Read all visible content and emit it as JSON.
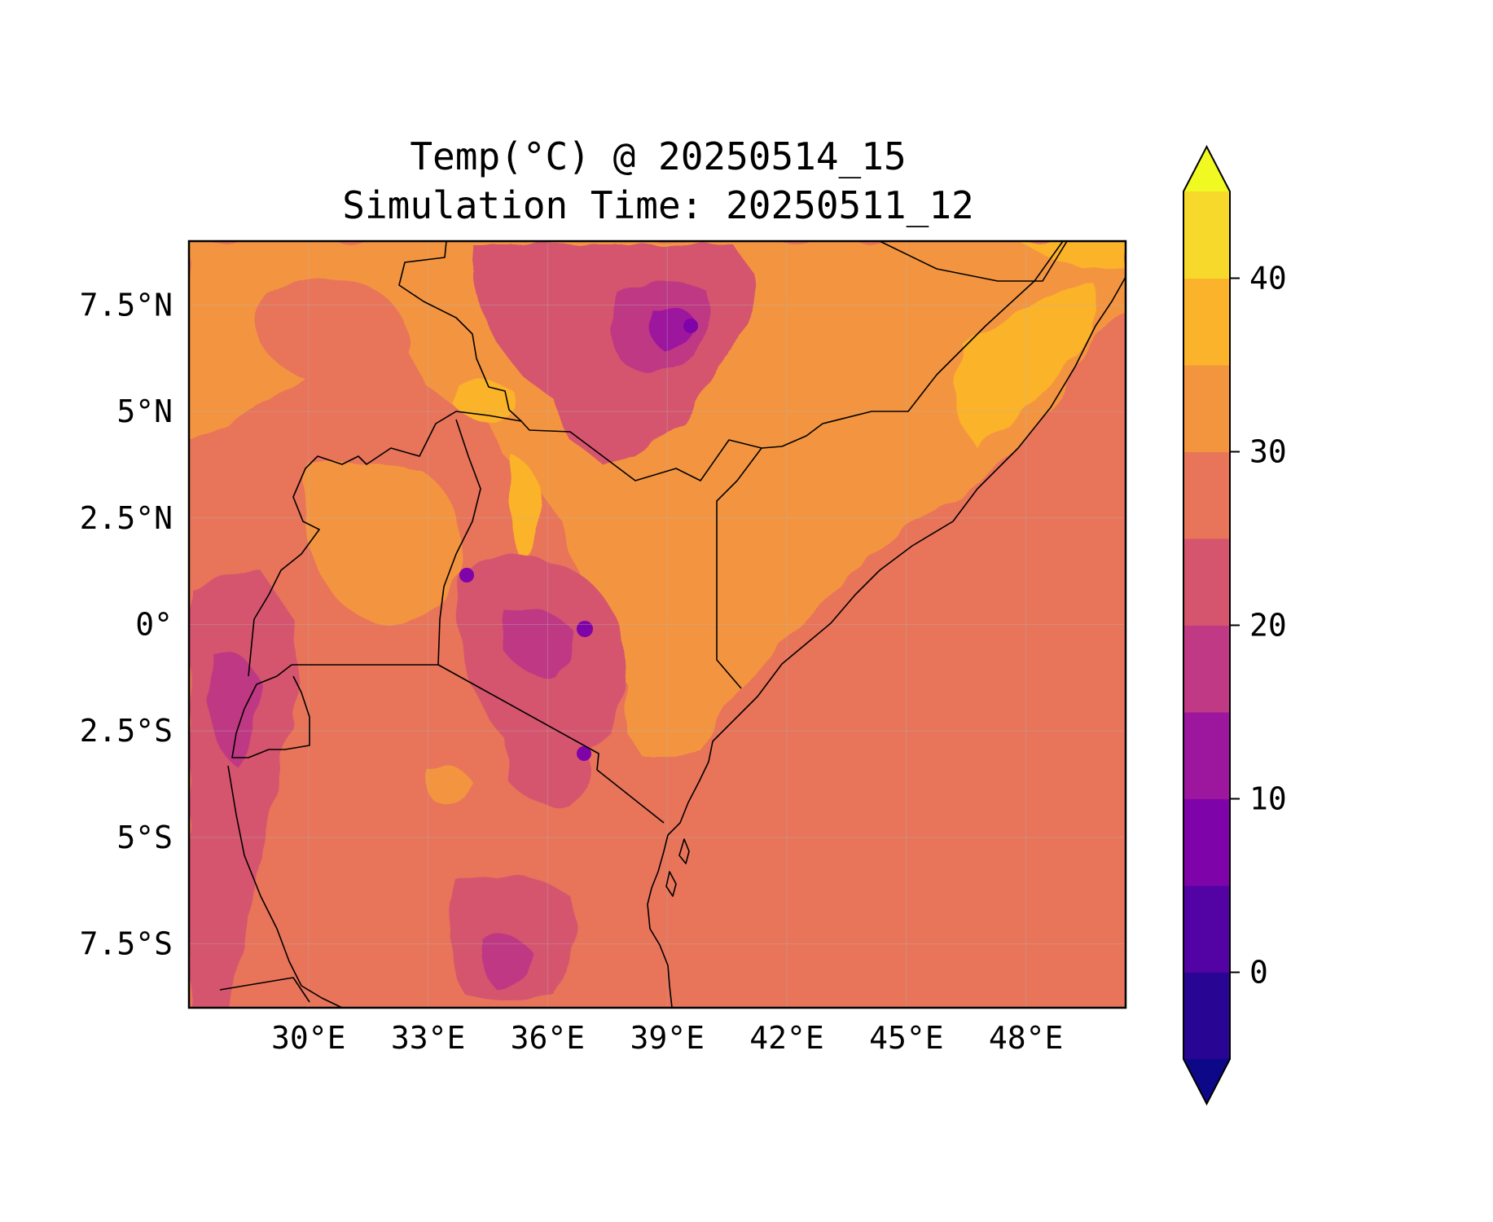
{
  "title": {
    "line1": "Temp(°C) @ 20250514_15",
    "line2": "Simulation Time: 20250511_12"
  },
  "map": {
    "projection": "PlateCarree",
    "lon_range": [
      27,
      50.5
    ],
    "lat_range": [
      -9,
      9
    ],
    "lon_ticks": [
      {
        "value": 30,
        "label": "30°E"
      },
      {
        "value": 33,
        "label": "33°E"
      },
      {
        "value": 36,
        "label": "36°E"
      },
      {
        "value": 39,
        "label": "39°E"
      },
      {
        "value": 42,
        "label": "42°E"
      },
      {
        "value": 45,
        "label": "45°E"
      },
      {
        "value": 48,
        "label": "48°E"
      }
    ],
    "lat_ticks": [
      {
        "value": 7.5,
        "label": "7.5°N"
      },
      {
        "value": 5,
        "label": "5°N"
      },
      {
        "value": 2.5,
        "label": "2.5°N"
      },
      {
        "value": 0,
        "label": "0°"
      },
      {
        "value": -2.5,
        "label": "2.5°S"
      },
      {
        "value": -5,
        "label": "5°S"
      },
      {
        "value": -7.5,
        "label": "7.5°S"
      }
    ],
    "gridlines": true,
    "ocean_value_band": [
      25,
      30
    ],
    "colors": {
      "band_25_30": "#e8745a",
      "band_30_35": "#f3953f",
      "band_35_40": "#fbb32b",
      "band_20_25": "#d5546e",
      "band_15_20": "#bf3984",
      "band_10_15": "#9c179e",
      "band_5_10": "#7e03a8",
      "border": "#000000"
    }
  },
  "colorbar": {
    "label_ticks": [
      {
        "value": 0,
        "label": "0"
      },
      {
        "value": 10,
        "label": "10"
      },
      {
        "value": 20,
        "label": "20"
      },
      {
        "value": 30,
        "label": "30"
      },
      {
        "value": 40,
        "label": "40"
      }
    ],
    "levels": [
      -5,
      0,
      5,
      10,
      15,
      20,
      25,
      30,
      35,
      40,
      45
    ],
    "colors": [
      "#280592",
      "#5302a3",
      "#7e03a8",
      "#9c179e",
      "#bf3984",
      "#d5546e",
      "#e8745a",
      "#f3953f",
      "#fbb32b",
      "#f6d92a"
    ],
    "extend_min_color": "#0d0887",
    "extend_max_color": "#f0f921",
    "extend": "both"
  }
}
